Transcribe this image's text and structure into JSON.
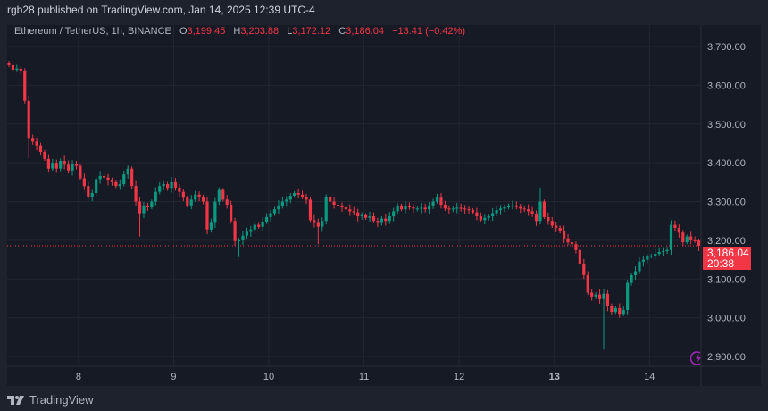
{
  "header": {
    "published": "rgb28 published on TradingView.com, Jan 14, 2025 12:39 UTC-4"
  },
  "legend": {
    "symbol": "Ethereum / TetherUS, 1h, BINANCE",
    "o_label": "O",
    "o": "3,199.45",
    "h_label": "H",
    "h": "3,203.88",
    "l_label": "L",
    "l": "3,172.12",
    "c_label": "C",
    "c": "3,186.04",
    "change": "−13.41 (−0.42%)"
  },
  "price_label": {
    "price": "3,186.04",
    "countdown": "20:38"
  },
  "footer": {
    "brand": "TradingView"
  },
  "colors": {
    "up": "#089981",
    "down": "#f23645",
    "grid": "#222631",
    "last_price_line": "#f23645",
    "bolt": "#9c27b0"
  },
  "chart_data": {
    "type": "candlestick",
    "interval": "1h",
    "ylim": [
      2824,
      3737
    ],
    "grid": true,
    "y_ticks": [
      {
        "value": 3700,
        "label": "3,700.00"
      },
      {
        "value": 3600,
        "label": "3,600.00"
      },
      {
        "value": 3500,
        "label": "3,500.00"
      },
      {
        "value": 3400,
        "label": "3,400.00"
      },
      {
        "value": 3300,
        "label": "3,300.00"
      },
      {
        "value": 3200,
        "label": "3,200.00"
      },
      {
        "value": 3100,
        "label": "3,100.00"
      },
      {
        "value": 3000,
        "label": "3,000.00"
      },
      {
        "value": 2900,
        "label": "2,900.00"
      }
    ],
    "x_ticks": [
      "8",
      "9",
      "10",
      "11",
      "12",
      "13",
      "14"
    ],
    "first_open": 3658,
    "closes": [
      3652,
      3640,
      3643,
      3638,
      3560,
      3462,
      3455,
      3445,
      3428,
      3410,
      3385,
      3400,
      3385,
      3405,
      3395,
      3380,
      3398,
      3392,
      3360,
      3340,
      3312,
      3322,
      3358,
      3366,
      3362,
      3355,
      3350,
      3340,
      3345,
      3370,
      3385,
      3340,
      3300,
      3270,
      3290,
      3285,
      3300,
      3325,
      3340,
      3345,
      3335,
      3350,
      3336,
      3325,
      3310,
      3290,
      3305,
      3318,
      3312,
      3300,
      3228,
      3245,
      3300,
      3330,
      3305,
      3292,
      3250,
      3198,
      3200,
      3212,
      3222,
      3228,
      3240,
      3235,
      3248,
      3260,
      3270,
      3280,
      3290,
      3300,
      3305,
      3315,
      3322,
      3318,
      3312,
      3305,
      3252,
      3245,
      3235,
      3250,
      3312,
      3300,
      3292,
      3290,
      3285,
      3280,
      3275,
      3272,
      3262,
      3265,
      3258,
      3262,
      3250,
      3245,
      3256,
      3250,
      3262,
      3275,
      3290,
      3280,
      3288,
      3285,
      3282,
      3282,
      3284,
      3280,
      3290,
      3300,
      3310,
      3292,
      3282,
      3280,
      3282,
      3284,
      3282,
      3280,
      3278,
      3272,
      3262,
      3252,
      3258,
      3262,
      3270,
      3278,
      3282,
      3285,
      3290,
      3290,
      3286,
      3282,
      3280,
      3275,
      3268,
      3250,
      3300,
      3260,
      3250,
      3238,
      3232,
      3225,
      3205,
      3195,
      3190,
      3175,
      3140,
      3110,
      3065,
      3055,
      3060,
      3048,
      3062,
      3030,
      3015,
      3025,
      3010,
      3020,
      3090,
      3110,
      3120,
      3145,
      3150,
      3158,
      3160,
      3165,
      3170,
      3172,
      3175,
      3240,
      3232,
      3220,
      3195,
      3210,
      3200,
      3199.45,
      3186.04
    ],
    "wick_extremes": [
      {
        "index": 5,
        "low": 3412
      },
      {
        "index": 33,
        "low": 3210
      },
      {
        "index": 58,
        "low": 3157
      },
      {
        "index": 78,
        "low": 3190
      },
      {
        "index": 108,
        "high": 3320
      },
      {
        "index": 134,
        "high": 3336
      },
      {
        "index": 150,
        "low": 2918
      },
      {
        "index": 167,
        "high": 3252
      },
      {
        "index": 174,
        "open": 3199.45,
        "high": 3203.88,
        "low": 3172.12,
        "close": 3186.04
      }
    ],
    "last_price": 3186.04
  }
}
